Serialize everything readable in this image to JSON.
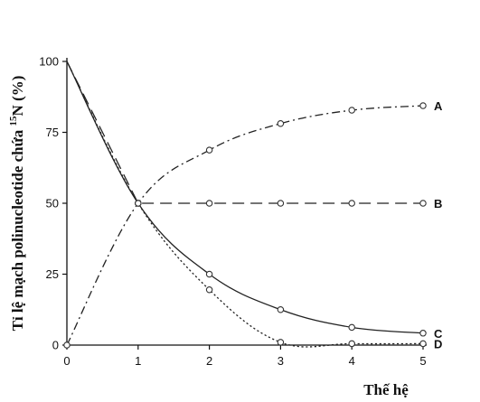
{
  "chart_data": {
    "type": "line",
    "ylabel_prefix": "Tỉ lệ mạch polinucleotide chứa ",
    "ylabel_sup": "15",
    "ylabel_suffix": "N (%)",
    "xlabel": "Thế hệ",
    "xlim": [
      0,
      5
    ],
    "ylim": [
      0,
      100
    ],
    "xticks": [
      "0",
      "1",
      "2",
      "3",
      "4",
      "5"
    ],
    "yticks": [
      "0",
      "25",
      "50",
      "75",
      "100"
    ],
    "grid": false,
    "series": [
      {
        "name": "A",
        "style": "dashdot",
        "x": [
          0,
          1,
          2,
          3,
          4,
          5
        ],
        "y": [
          0,
          50,
          68.75,
          78.1,
          82.8,
          84.4
        ],
        "markers": [
          0,
          1,
          2,
          3,
          4,
          5
        ]
      },
      {
        "name": "B",
        "style": "longdash",
        "x": [
          0,
          1,
          2,
          3,
          4,
          5
        ],
        "y": [
          100,
          50,
          50,
          50,
          50,
          50
        ],
        "markers": [
          1,
          2,
          3,
          4,
          5
        ]
      },
      {
        "name": "C",
        "style": "solid",
        "x": [
          0,
          1,
          2,
          3,
          4,
          5
        ],
        "y": [
          100,
          50,
          25,
          12.5,
          6.25,
          4.2
        ],
        "markers": [
          1,
          2,
          3,
          4,
          5
        ]
      },
      {
        "name": "D",
        "style": "dotted",
        "x": [
          0,
          1,
          2,
          3,
          4,
          5
        ],
        "y": [
          100,
          50,
          19.5,
          1,
          0.5,
          0.5
        ],
        "markers": [
          2,
          3,
          4,
          5
        ]
      }
    ]
  }
}
